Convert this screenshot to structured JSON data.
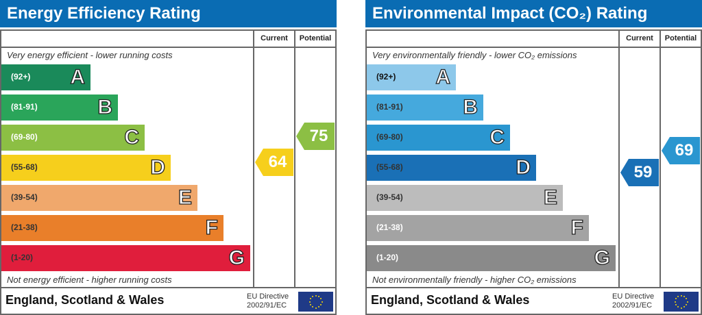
{
  "panels": [
    {
      "title": "Energy Efficiency Rating",
      "col_current": "Current",
      "col_potential": "Potential",
      "top_note": "Very energy efficient - lower running costs",
      "bottom_note": "Not energy efficient - higher running costs",
      "bands": [
        {
          "range": "(92+)",
          "letter": "A",
          "color": "#1a8a5a",
          "text_color": "#ffffff"
        },
        {
          "range": "(81-91)",
          "letter": "B",
          "color": "#2aa55a",
          "text_color": "#ffffff"
        },
        {
          "range": "(69-80)",
          "letter": "C",
          "color": "#8cbf44",
          "text_color": "#ffffff"
        },
        {
          "range": "(55-68)",
          "letter": "D",
          "color": "#f6cf1c",
          "text_color": "#333333"
        },
        {
          "range": "(39-54)",
          "letter": "E",
          "color": "#f0a86c",
          "text_color": "#333333"
        },
        {
          "range": "(21-38)",
          "letter": "F",
          "color": "#e97f2a",
          "text_color": "#333333"
        },
        {
          "range": "(1-20)",
          "letter": "G",
          "color": "#e01e3c",
          "text_color": "#333333"
        }
      ],
      "current": {
        "value": "64",
        "band": "D",
        "color": "#f6cf1c"
      },
      "potential": {
        "value": "75",
        "band": "C",
        "color": "#8cbf44"
      },
      "region": "England, Scotland & Wales",
      "eu_line1": "EU Directive",
      "eu_line2": "2002/91/EC"
    },
    {
      "title": "Environmental Impact (CO₂) Rating",
      "col_current": "Current",
      "col_potential": "Potential",
      "top_note": "Very environmentally friendly - lower CO₂ emissions",
      "bottom_note": "Not environmentally friendly - higher CO₂ emissions",
      "bands": [
        {
          "range": "(92+)",
          "letter": "A",
          "color": "#8dc8ea",
          "text_color": "#111111"
        },
        {
          "range": "(81-91)",
          "letter": "B",
          "color": "#45a9dd",
          "text_color": "#333333"
        },
        {
          "range": "(69-80)",
          "letter": "C",
          "color": "#2a96d0",
          "text_color": "#333333"
        },
        {
          "range": "(55-68)",
          "letter": "D",
          "color": "#1a70b6",
          "text_color": "#333333"
        },
        {
          "range": "(39-54)",
          "letter": "E",
          "color": "#bcbcbc",
          "text_color": "#333333"
        },
        {
          "range": "(21-38)",
          "letter": "F",
          "color": "#a3a3a3",
          "text_color": "#ffffff"
        },
        {
          "range": "(1-20)",
          "letter": "G",
          "color": "#8a8a8a",
          "text_color": "#ffffff"
        }
      ],
      "current": {
        "value": "59",
        "band": "D",
        "color": "#1a70b6"
      },
      "potential": {
        "value": "69",
        "band": "C",
        "color": "#2a96d0"
      },
      "region": "England, Scotland & Wales",
      "eu_line1": "EU Directive",
      "eu_line2": "2002/91/EC"
    }
  ]
}
